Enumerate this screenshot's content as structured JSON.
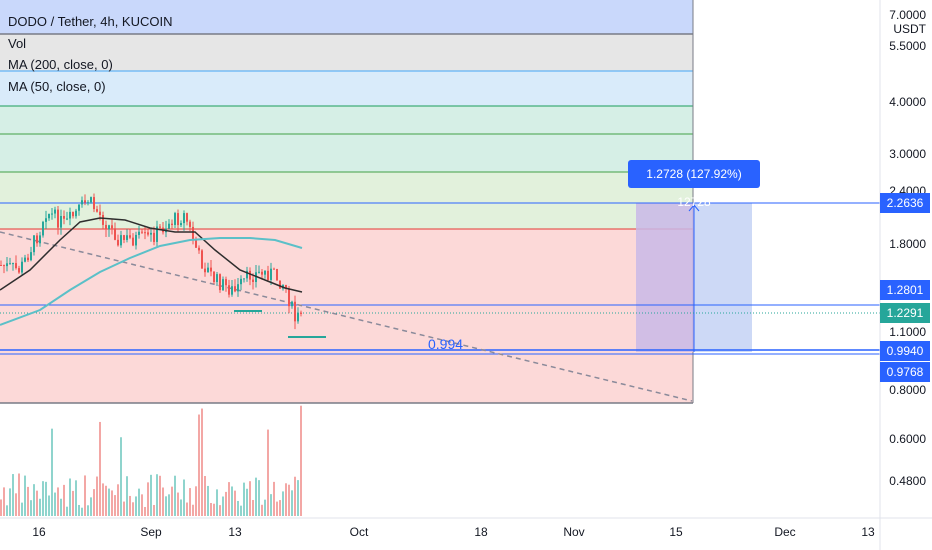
{
  "legend": {
    "title": "DODO / Tether, 4h, KUCOIN",
    "vol": "Vol",
    "ma200": "MA (200, close, 0)",
    "ma50": "MA (50, close, 0)"
  },
  "price_axis": {
    "unit": "USDT",
    "top_tick": "7.0000",
    "ticks": [
      "5.5000",
      "4.0000",
      "3.0000",
      "2.4000",
      "1.8000",
      "1.1000",
      "0.8000",
      "0.6000",
      "0.4800"
    ]
  },
  "price_tags": {
    "target": "2.2636",
    "level_1": "1.2801",
    "current": "1.2291",
    "level_2": "0.9940",
    "level_3": "0.9768"
  },
  "time_axis": [
    "16",
    "Sep",
    "13",
    "Oct",
    "18",
    "Nov",
    "15",
    "Dec",
    "13"
  ],
  "measure_tooltip": "1.2728 (127.92%) 12728",
  "level_label": "0.994",
  "colors": {
    "blue": "#2962ff",
    "green": "#26a69a",
    "red": "#ef5350"
  }
}
